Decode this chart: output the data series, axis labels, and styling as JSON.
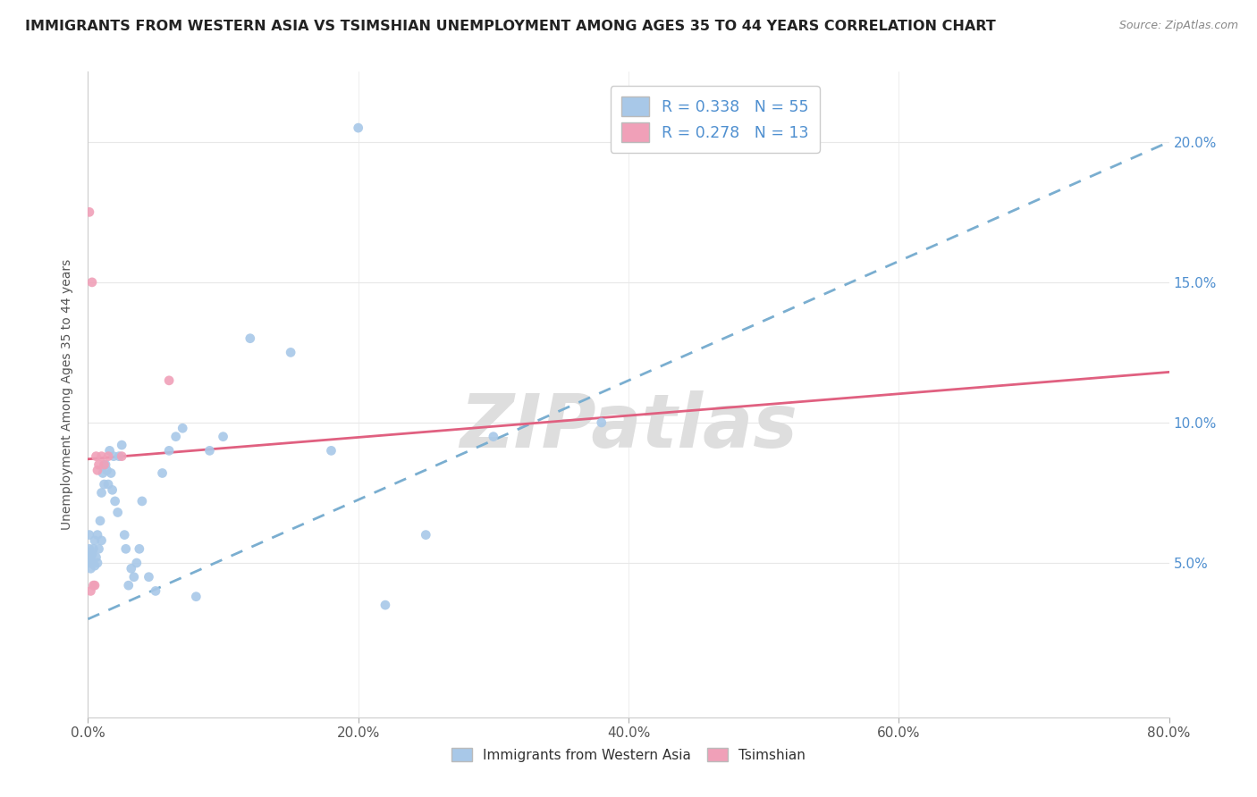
{
  "title": "IMMIGRANTS FROM WESTERN ASIA VS TSIMSHIAN UNEMPLOYMENT AMONG AGES 35 TO 44 YEARS CORRELATION CHART",
  "source": "Source: ZipAtlas.com",
  "ylabel": "Unemployment Among Ages 35 to 44 years",
  "xlim": [
    0.0,
    0.8
  ],
  "ylim": [
    -0.005,
    0.225
  ],
  "x_ticks": [
    0.0,
    0.2,
    0.4,
    0.6,
    0.8
  ],
  "x_tick_labels": [
    "0.0%",
    "20.0%",
    "40.0%",
    "60.0%",
    "80.0%"
  ],
  "y_ticks": [
    0.05,
    0.1,
    0.15,
    0.2
  ],
  "y_tick_labels": [
    "5.0%",
    "10.0%",
    "15.0%",
    "20.0%"
  ],
  "legend_labels_top": [
    "R = 0.338   N = 55",
    "R = 0.278   N = 13"
  ],
  "legend_labels_bottom": [
    "Immigrants from Western Asia",
    "Tsimshian"
  ],
  "watermark": "ZIPatlas",
  "blue_scatter_x": [
    0.001,
    0.001,
    0.001,
    0.002,
    0.002,
    0.003,
    0.003,
    0.004,
    0.005,
    0.005,
    0.006,
    0.007,
    0.007,
    0.008,
    0.009,
    0.01,
    0.01,
    0.011,
    0.012,
    0.013,
    0.014,
    0.015,
    0.016,
    0.017,
    0.018,
    0.019,
    0.02,
    0.022,
    0.023,
    0.025,
    0.027,
    0.028,
    0.03,
    0.032,
    0.034,
    0.036,
    0.038,
    0.04,
    0.045,
    0.05,
    0.055,
    0.06,
    0.065,
    0.07,
    0.08,
    0.09,
    0.1,
    0.12,
    0.15,
    0.18,
    0.2,
    0.22,
    0.25,
    0.3,
    0.38
  ],
  "blue_scatter_y": [
    0.05,
    0.055,
    0.06,
    0.048,
    0.052,
    0.05,
    0.053,
    0.055,
    0.049,
    0.058,
    0.052,
    0.05,
    0.06,
    0.055,
    0.065,
    0.058,
    0.075,
    0.082,
    0.078,
    0.085,
    0.083,
    0.078,
    0.09,
    0.082,
    0.076,
    0.088,
    0.072,
    0.068,
    0.088,
    0.092,
    0.06,
    0.055,
    0.042,
    0.048,
    0.045,
    0.05,
    0.055,
    0.072,
    0.045,
    0.04,
    0.082,
    0.09,
    0.095,
    0.098,
    0.038,
    0.09,
    0.095,
    0.13,
    0.125,
    0.09,
    0.205,
    0.035,
    0.06,
    0.095,
    0.1
  ],
  "pink_scatter_x": [
    0.001,
    0.002,
    0.003,
    0.004,
    0.005,
    0.006,
    0.007,
    0.008,
    0.01,
    0.012,
    0.015,
    0.025,
    0.06
  ],
  "pink_scatter_y": [
    0.175,
    0.04,
    0.15,
    0.042,
    0.042,
    0.088,
    0.083,
    0.085,
    0.088,
    0.085,
    0.088,
    0.088,
    0.115
  ],
  "blue_trendline_x0": 0.0,
  "blue_trendline_x1": 0.8,
  "blue_trendline_y0": 0.03,
  "blue_trendline_y1": 0.2,
  "pink_trendline_x0": 0.0,
  "pink_trendline_x1": 0.8,
  "pink_trendline_y0": 0.087,
  "pink_trendline_y1": 0.118,
  "scatter_color_blue": "#a8c8e8",
  "scatter_color_pink": "#f0a0b8",
  "line_color_blue": "#7aaed0",
  "line_color_pink": "#e06080",
  "bg_color": "#ffffff",
  "grid_color": "#e8e8e8",
  "title_color": "#222222",
  "axis_label_color": "#555555",
  "tick_color_right": "#5090d0",
  "watermark_color": "#dedede"
}
